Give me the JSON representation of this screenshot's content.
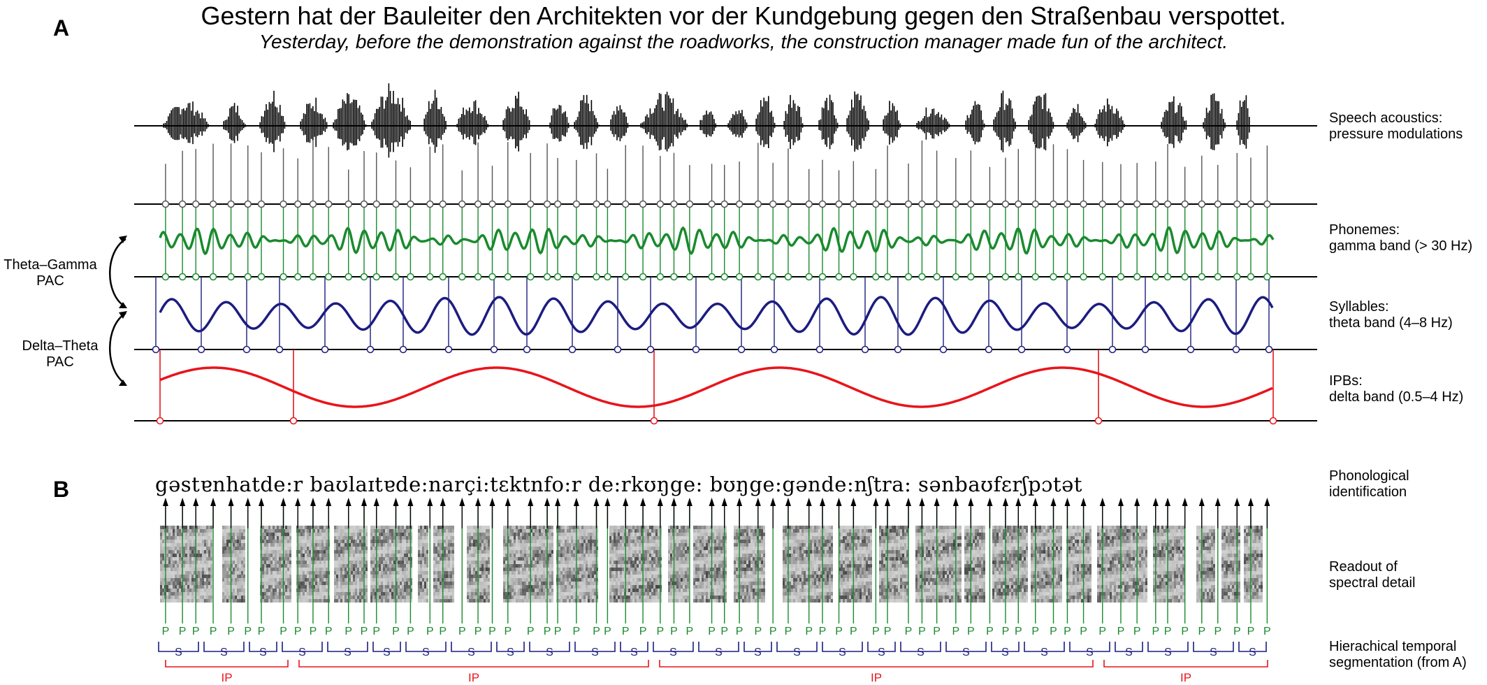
{
  "panel_a_label": "A",
  "panel_b_label": "B",
  "sentence_german": "Gestern hat der Bauleiter den Architekten vor der Kundgebung gegen den Straßenbau verspottet.",
  "sentence_english": "Yesterday, before the demonstration against the roadworks, the construction manager made fun of the architect.",
  "track_labels": {
    "speech": [
      "Speech acoustics:",
      "pressure modulations"
    ],
    "phonemes": [
      "Phonemes:",
      "gamma band (> 30 Hz)"
    ],
    "syllables": [
      "Syllables:",
      "theta band (4–8 Hz)"
    ],
    "ipbs": [
      "IPBs:",
      "delta band (0.5–4 Hz)"
    ]
  },
  "coupling_labels": {
    "theta_gamma": [
      "Theta–Gamma",
      "PAC"
    ],
    "delta_theta": [
      "Delta–Theta",
      "PAC"
    ]
  },
  "panel_b_labels": {
    "phonological": [
      "Phonological",
      "identification"
    ],
    "spectral": [
      "Readout of",
      "spectral detail"
    ],
    "segmentation": [
      "Hierachical temporal",
      "segmentation (from A)"
    ]
  },
  "phoneme_transcription": "gəstɐnhatde:r baʊlaɪtɐde:narçi:tɛktnfo:r de:rkʊŋge: bʊŋge:gənde:nʃtra: sənbaʊfɛrʃpɔtət",
  "segment_markers": {
    "phoneme": "P",
    "syllable": "S",
    "ipb": "IP"
  },
  "colors": {
    "gamma": "#1a8a2e",
    "theta": "#1c1c80",
    "delta": "#e8141b",
    "acoustic": "#000000"
  },
  "ipb_count": 4,
  "syllable_count": 28,
  "phoneme_count": 68
}
